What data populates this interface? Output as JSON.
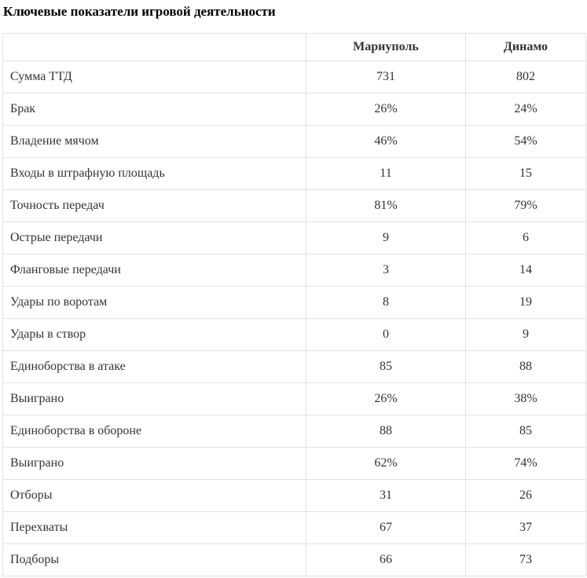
{
  "colors": {
    "background": "#ffffff",
    "border": "#e2e2e2",
    "text": "#333333",
    "title": "#000000"
  },
  "chart_data": {
    "type": "table",
    "title": "Ключевые показатели игровой деятельности",
    "columns": [
      "",
      "Мариуполь",
      "Динамо"
    ],
    "rows": [
      {
        "label": "Сумма ТТД",
        "values": [
          "731",
          "802"
        ]
      },
      {
        "label": "Брак",
        "values": [
          "26%",
          "24%"
        ]
      },
      {
        "label": "Владение мячом",
        "values": [
          "46%",
          "54%"
        ]
      },
      {
        "label": "Входы в штрафную площадь",
        "values": [
          "11",
          "15"
        ]
      },
      {
        "label": "Точность передач",
        "values": [
          "81%",
          "79%"
        ]
      },
      {
        "label": "Острые передачи",
        "values": [
          "9",
          "6"
        ]
      },
      {
        "label": "Фланговые передачи",
        "values": [
          "3",
          "14"
        ]
      },
      {
        "label": "Удары по воротам",
        "values": [
          "8",
          "19"
        ]
      },
      {
        "label": "Удары в створ",
        "values": [
          "0",
          "9"
        ]
      },
      {
        "label": "Единоборства в атаке",
        "values": [
          "85",
          "88"
        ]
      },
      {
        "label": "Выиграно",
        "values": [
          "26%",
          "38%"
        ]
      },
      {
        "label": "Единоборства в обороне",
        "values": [
          "88",
          "85"
        ]
      },
      {
        "label": "Выиграно",
        "values": [
          "62%",
          "74%"
        ]
      },
      {
        "label": "Отборы",
        "values": [
          "31",
          "26"
        ]
      },
      {
        "label": "Перехваты",
        "values": [
          "67",
          "37"
        ]
      },
      {
        "label": "Подборы",
        "values": [
          "66",
          "73"
        ]
      }
    ]
  }
}
